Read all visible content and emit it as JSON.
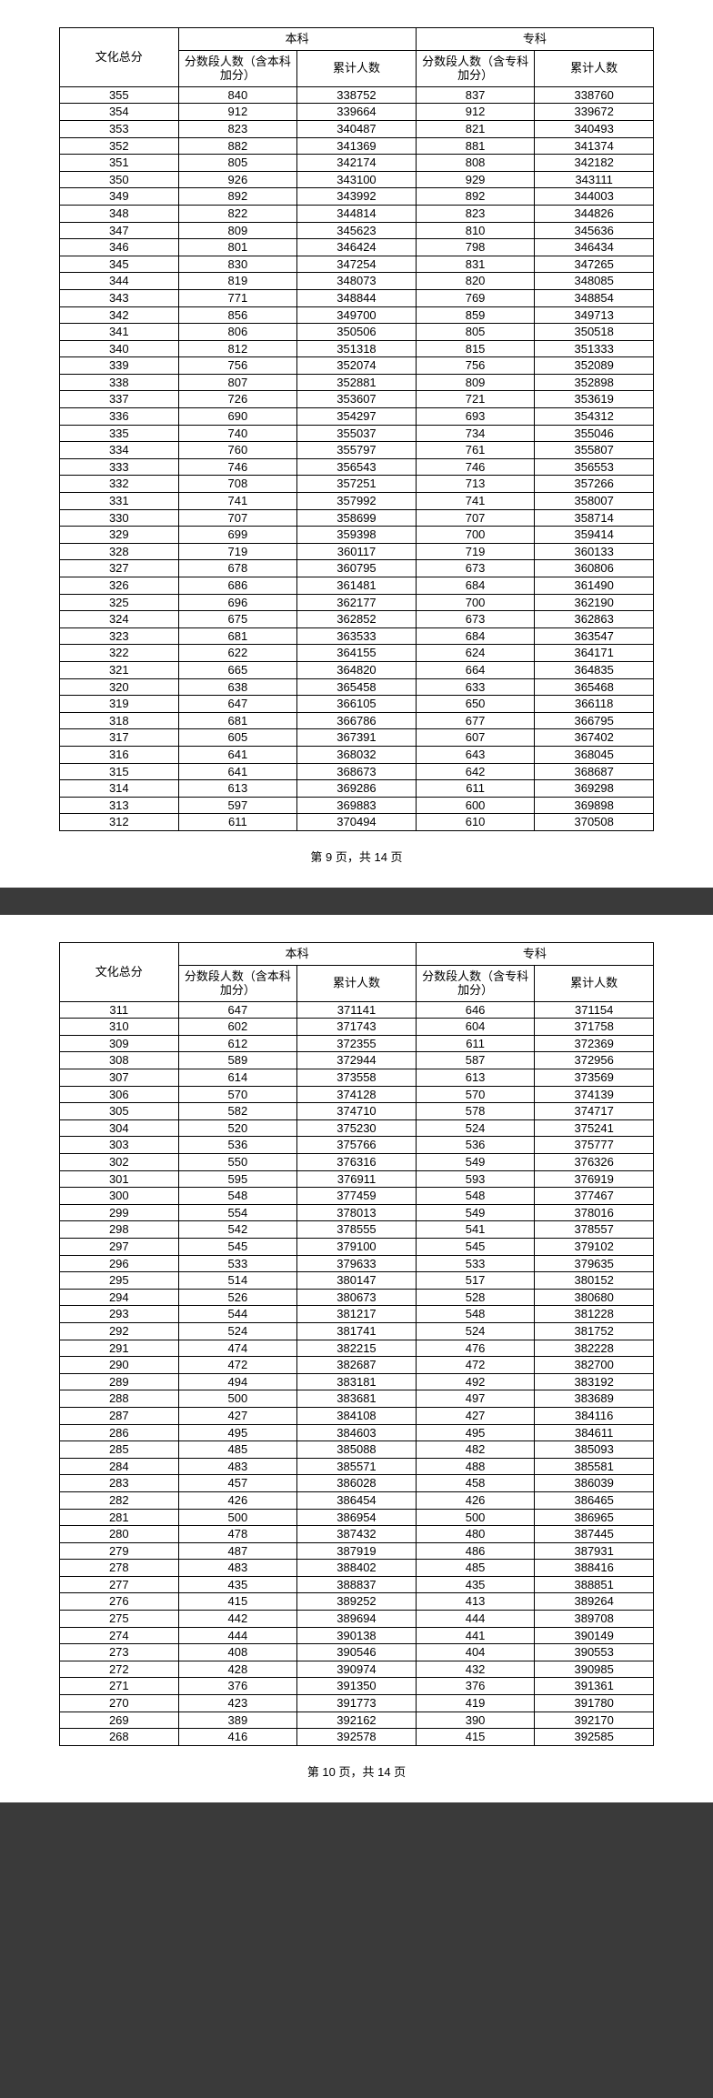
{
  "header": {
    "col1": "文化总分",
    "group1": "本科",
    "group2": "专科",
    "sub1": "分数段人数（含本科加分）",
    "sub2": "累计人数",
    "sub3": "分数段人数（含专科加分）",
    "sub4": "累计人数"
  },
  "footer1": "第 9 页，共 14 页",
  "footer2": "第 10 页，共 14 页",
  "rows1": [
    [
      355,
      840,
      338752,
      837,
      338760
    ],
    [
      354,
      912,
      339664,
      912,
      339672
    ],
    [
      353,
      823,
      340487,
      821,
      340493
    ],
    [
      352,
      882,
      341369,
      881,
      341374
    ],
    [
      351,
      805,
      342174,
      808,
      342182
    ],
    [
      350,
      926,
      343100,
      929,
      343111
    ],
    [
      349,
      892,
      343992,
      892,
      344003
    ],
    [
      348,
      822,
      344814,
      823,
      344826
    ],
    [
      347,
      809,
      345623,
      810,
      345636
    ],
    [
      346,
      801,
      346424,
      798,
      346434
    ],
    [
      345,
      830,
      347254,
      831,
      347265
    ],
    [
      344,
      819,
      348073,
      820,
      348085
    ],
    [
      343,
      771,
      348844,
      769,
      348854
    ],
    [
      342,
      856,
      349700,
      859,
      349713
    ],
    [
      341,
      806,
      350506,
      805,
      350518
    ],
    [
      340,
      812,
      351318,
      815,
      351333
    ],
    [
      339,
      756,
      352074,
      756,
      352089
    ],
    [
      338,
      807,
      352881,
      809,
      352898
    ],
    [
      337,
      726,
      353607,
      721,
      353619
    ],
    [
      336,
      690,
      354297,
      693,
      354312
    ],
    [
      335,
      740,
      355037,
      734,
      355046
    ],
    [
      334,
      760,
      355797,
      761,
      355807
    ],
    [
      333,
      746,
      356543,
      746,
      356553
    ],
    [
      332,
      708,
      357251,
      713,
      357266
    ],
    [
      331,
      741,
      357992,
      741,
      358007
    ],
    [
      330,
      707,
      358699,
      707,
      358714
    ],
    [
      329,
      699,
      359398,
      700,
      359414
    ],
    [
      328,
      719,
      360117,
      719,
      360133
    ],
    [
      327,
      678,
      360795,
      673,
      360806
    ],
    [
      326,
      686,
      361481,
      684,
      361490
    ],
    [
      325,
      696,
      362177,
      700,
      362190
    ],
    [
      324,
      675,
      362852,
      673,
      362863
    ],
    [
      323,
      681,
      363533,
      684,
      363547
    ],
    [
      322,
      622,
      364155,
      624,
      364171
    ],
    [
      321,
      665,
      364820,
      664,
      364835
    ],
    [
      320,
      638,
      365458,
      633,
      365468
    ],
    [
      319,
      647,
      366105,
      650,
      366118
    ],
    [
      318,
      681,
      366786,
      677,
      366795
    ],
    [
      317,
      605,
      367391,
      607,
      367402
    ],
    [
      316,
      641,
      368032,
      643,
      368045
    ],
    [
      315,
      641,
      368673,
      642,
      368687
    ],
    [
      314,
      613,
      369286,
      611,
      369298
    ],
    [
      313,
      597,
      369883,
      600,
      369898
    ],
    [
      312,
      611,
      370494,
      610,
      370508
    ]
  ],
  "rows2": [
    [
      311,
      647,
      371141,
      646,
      371154
    ],
    [
      310,
      602,
      371743,
      604,
      371758
    ],
    [
      309,
      612,
      372355,
      611,
      372369
    ],
    [
      308,
      589,
      372944,
      587,
      372956
    ],
    [
      307,
      614,
      373558,
      613,
      373569
    ],
    [
      306,
      570,
      374128,
      570,
      374139
    ],
    [
      305,
      582,
      374710,
      578,
      374717
    ],
    [
      304,
      520,
      375230,
      524,
      375241
    ],
    [
      303,
      536,
      375766,
      536,
      375777
    ],
    [
      302,
      550,
      376316,
      549,
      376326
    ],
    [
      301,
      595,
      376911,
      593,
      376919
    ],
    [
      300,
      548,
      377459,
      548,
      377467
    ],
    [
      299,
      554,
      378013,
      549,
      378016
    ],
    [
      298,
      542,
      378555,
      541,
      378557
    ],
    [
      297,
      545,
      379100,
      545,
      379102
    ],
    [
      296,
      533,
      379633,
      533,
      379635
    ],
    [
      295,
      514,
      380147,
      517,
      380152
    ],
    [
      294,
      526,
      380673,
      528,
      380680
    ],
    [
      293,
      544,
      381217,
      548,
      381228
    ],
    [
      292,
      524,
      381741,
      524,
      381752
    ],
    [
      291,
      474,
      382215,
      476,
      382228
    ],
    [
      290,
      472,
      382687,
      472,
      382700
    ],
    [
      289,
      494,
      383181,
      492,
      383192
    ],
    [
      288,
      500,
      383681,
      497,
      383689
    ],
    [
      287,
      427,
      384108,
      427,
      384116
    ],
    [
      286,
      495,
      384603,
      495,
      384611
    ],
    [
      285,
      485,
      385088,
      482,
      385093
    ],
    [
      284,
      483,
      385571,
      488,
      385581
    ],
    [
      283,
      457,
      386028,
      458,
      386039
    ],
    [
      282,
      426,
      386454,
      426,
      386465
    ],
    [
      281,
      500,
      386954,
      500,
      386965
    ],
    [
      280,
      478,
      387432,
      480,
      387445
    ],
    [
      279,
      487,
      387919,
      486,
      387931
    ],
    [
      278,
      483,
      388402,
      485,
      388416
    ],
    [
      277,
      435,
      388837,
      435,
      388851
    ],
    [
      276,
      415,
      389252,
      413,
      389264
    ],
    [
      275,
      442,
      389694,
      444,
      389708
    ],
    [
      274,
      444,
      390138,
      441,
      390149
    ],
    [
      273,
      408,
      390546,
      404,
      390553
    ],
    [
      272,
      428,
      390974,
      432,
      390985
    ],
    [
      271,
      376,
      391350,
      376,
      391361
    ],
    [
      270,
      423,
      391773,
      419,
      391780
    ],
    [
      269,
      389,
      392162,
      390,
      392170
    ],
    [
      268,
      416,
      392578,
      415,
      392585
    ]
  ]
}
